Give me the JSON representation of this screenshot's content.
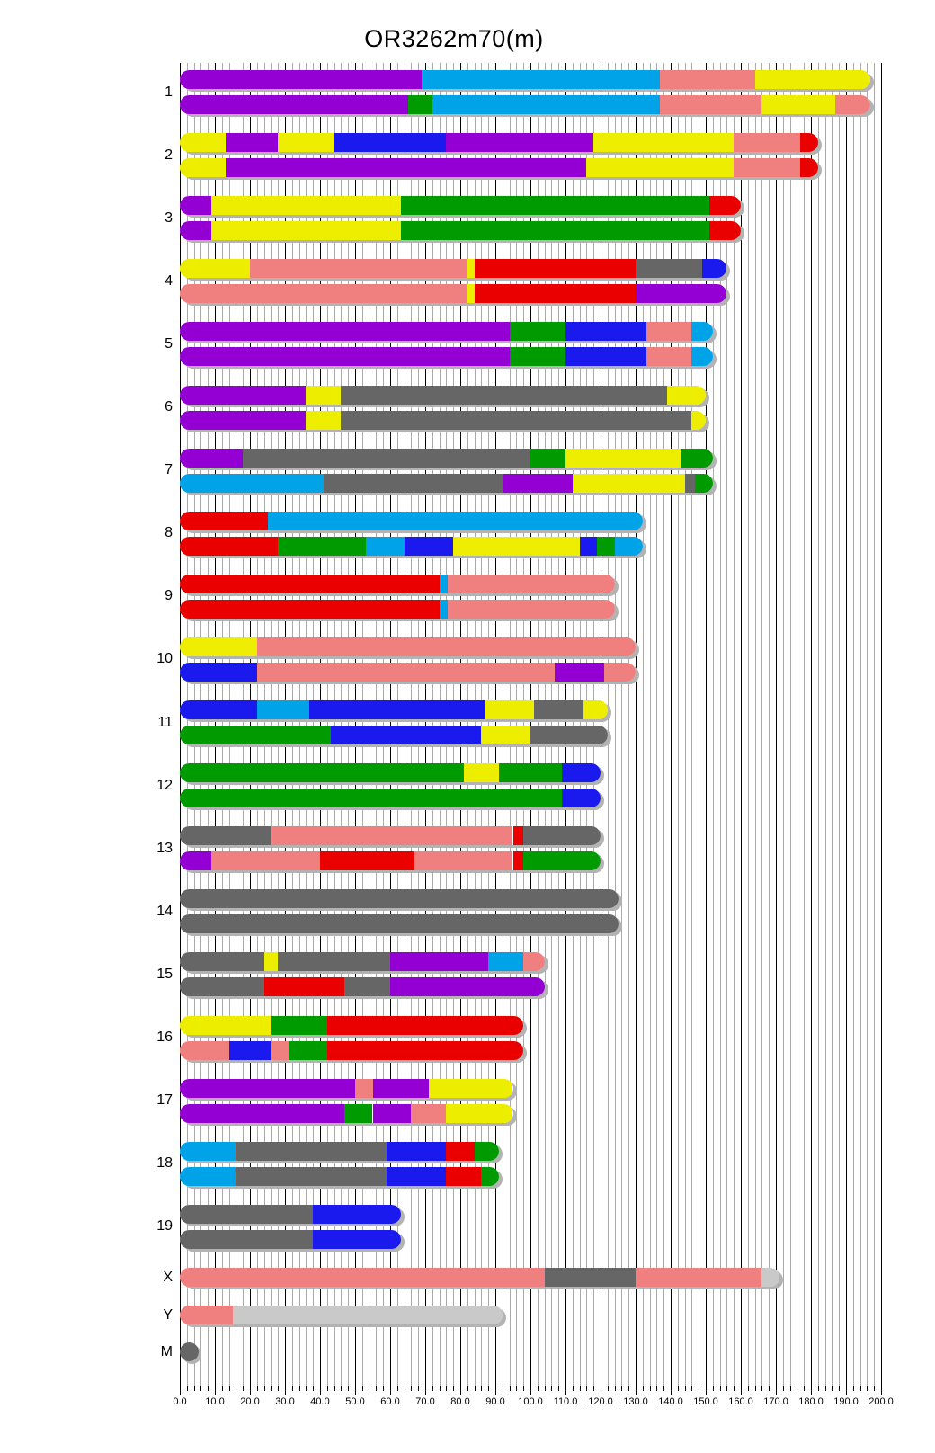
{
  "title": "OR3262m70(m)",
  "colors": {
    "purple": "#9400D3",
    "cyan": "#00A2E8",
    "blue": "#1A1AEE",
    "green": "#009B00",
    "red": "#EB0000",
    "yellow": "#EDED00",
    "pink": "#F08080",
    "gray": "#666666",
    "lightgray": "#C9C9C9",
    "shadow": "#B3B3B3",
    "grid_minor": "#AAAAAA",
    "grid_major": "#000000"
  },
  "axis": {
    "min": 0,
    "max": 200,
    "minor_step": 2,
    "major_step": 10,
    "tick_labels": [
      "0.0",
      "10.0",
      "20.0",
      "30.0",
      "40.0",
      "50.0",
      "60.0",
      "70.0",
      "80.0",
      "90.0",
      "100.0",
      "110.0",
      "120.0",
      "130.0",
      "140.0",
      "150.0",
      "160.0",
      "170.0",
      "180.0",
      "190.0",
      "200.0"
    ]
  },
  "chart_data": {
    "type": "ideogram",
    "title": "OR3262m70(m)",
    "x_unit": "Mb",
    "xlim": [
      0,
      200
    ],
    "grid": true,
    "legend_position": "none",
    "description": "Mouse karyotype haplotype painting; two haplotype bars per autosome, one bar for X and Y, dot for M. Segments given as [start_Mb, end_Mb, color_key].",
    "chromosomes": [
      {
        "label": "1",
        "length": 197,
        "bars": [
          [
            [
              0,
              69,
              "purple"
            ],
            [
              69,
              137,
              "cyan"
            ],
            [
              137,
              164,
              "pink"
            ],
            [
              164,
              197,
              "yellow"
            ]
          ],
          [
            [
              0,
              65,
              "purple"
            ],
            [
              65,
              72,
              "green"
            ],
            [
              72,
              137,
              "cyan"
            ],
            [
              137,
              166,
              "pink"
            ],
            [
              166,
              187,
              "yellow"
            ],
            [
              187,
              197,
              "pink"
            ]
          ]
        ]
      },
      {
        "label": "2",
        "length": 182,
        "bars": [
          [
            [
              0,
              13,
              "yellow"
            ],
            [
              13,
              28,
              "purple"
            ],
            [
              28,
              44,
              "yellow"
            ],
            [
              44,
              76,
              "blue"
            ],
            [
              76,
              118,
              "purple"
            ],
            [
              118,
              158,
              "yellow"
            ],
            [
              158,
              177,
              "pink"
            ],
            [
              177,
              182,
              "red"
            ]
          ],
          [
            [
              0,
              13,
              "yellow"
            ],
            [
              13,
              116,
              "purple"
            ],
            [
              116,
              158,
              "yellow"
            ],
            [
              158,
              177,
              "pink"
            ],
            [
              177,
              182,
              "red"
            ]
          ]
        ]
      },
      {
        "label": "3",
        "length": 160,
        "bars": [
          [
            [
              0,
              9,
              "purple"
            ],
            [
              9,
              63,
              "yellow"
            ],
            [
              63,
              151,
              "green"
            ],
            [
              151,
              160,
              "red"
            ]
          ],
          [
            [
              0,
              9,
              "purple"
            ],
            [
              9,
              63,
              "yellow"
            ],
            [
              63,
              151,
              "green"
            ],
            [
              151,
              160,
              "red"
            ]
          ]
        ]
      },
      {
        "label": "4",
        "length": 156,
        "bars": [
          [
            [
              0,
              20,
              "yellow"
            ],
            [
              20,
              82,
              "pink"
            ],
            [
              82,
              84,
              "yellow"
            ],
            [
              84,
              130,
              "red"
            ],
            [
              130,
              149,
              "gray"
            ],
            [
              149,
              156,
              "blue"
            ]
          ],
          [
            [
              0,
              82,
              "pink"
            ],
            [
              82,
              84,
              "yellow"
            ],
            [
              84,
              130,
              "red"
            ],
            [
              130,
              156,
              "purple"
            ]
          ]
        ]
      },
      {
        "label": "5",
        "length": 152,
        "bars": [
          [
            [
              0,
              94,
              "purple"
            ],
            [
              94,
              110,
              "green"
            ],
            [
              110,
              133,
              "blue"
            ],
            [
              133,
              146,
              "pink"
            ],
            [
              146,
              152,
              "cyan"
            ]
          ],
          [
            [
              0,
              94,
              "purple"
            ],
            [
              94,
              110,
              "green"
            ],
            [
              110,
              133,
              "blue"
            ],
            [
              133,
              146,
              "pink"
            ],
            [
              146,
              152,
              "cyan"
            ]
          ]
        ]
      },
      {
        "label": "6",
        "length": 150,
        "bars": [
          [
            [
              0,
              36,
              "purple"
            ],
            [
              36,
              46,
              "yellow"
            ],
            [
              46,
              139,
              "gray"
            ],
            [
              139,
              150,
              "yellow"
            ]
          ],
          [
            [
              0,
              36,
              "purple"
            ],
            [
              36,
              46,
              "yellow"
            ],
            [
              46,
              146,
              "gray"
            ],
            [
              146,
              150,
              "yellow"
            ]
          ]
        ]
      },
      {
        "label": "7",
        "length": 152,
        "bars": [
          [
            [
              0,
              18,
              "purple"
            ],
            [
              18,
              100,
              "gray"
            ],
            [
              100,
              110,
              "green"
            ],
            [
              110,
              143,
              "yellow"
            ],
            [
              143,
              152,
              "green"
            ]
          ],
          [
            [
              0,
              41,
              "cyan"
            ],
            [
              41,
              92,
              "gray"
            ],
            [
              92,
              112,
              "purple"
            ],
            [
              112,
              144,
              "yellow"
            ],
            [
              144,
              147,
              "gray"
            ],
            [
              147,
              152,
              "green"
            ]
          ]
        ]
      },
      {
        "label": "8",
        "length": 132,
        "bars": [
          [
            [
              0,
              25,
              "red"
            ],
            [
              25,
              132,
              "cyan"
            ]
          ],
          [
            [
              0,
              28,
              "red"
            ],
            [
              28,
              53,
              "green"
            ],
            [
              53,
              64,
              "cyan"
            ],
            [
              64,
              78,
              "blue"
            ],
            [
              78,
              114,
              "yellow"
            ],
            [
              114,
              119,
              "blue"
            ],
            [
              119,
              124,
              "green"
            ],
            [
              124,
              132,
              "cyan"
            ]
          ]
        ]
      },
      {
        "label": "9",
        "length": 124,
        "bars": [
          [
            [
              0,
              74,
              "red"
            ],
            [
              74,
              76.5,
              "cyan"
            ],
            [
              76.5,
              124,
              "pink"
            ]
          ],
          [
            [
              0,
              74,
              "red"
            ],
            [
              74,
              76.5,
              "cyan"
            ],
            [
              76.5,
              124,
              "pink"
            ]
          ]
        ]
      },
      {
        "label": "10",
        "length": 130,
        "bars": [
          [
            [
              0,
              22,
              "yellow"
            ],
            [
              22,
              130,
              "pink"
            ]
          ],
          [
            [
              0,
              22,
              "blue"
            ],
            [
              22,
              107,
              "pink"
            ],
            [
              107,
              121,
              "purple"
            ],
            [
              121,
              130,
              "pink"
            ]
          ]
        ]
      },
      {
        "label": "11",
        "length": 122,
        "bars": [
          [
            [
              0,
              22,
              "blue"
            ],
            [
              22,
              37,
              "cyan"
            ],
            [
              37,
              87,
              "blue"
            ],
            [
              87,
              101,
              "yellow"
            ],
            [
              101,
              115,
              "gray"
            ],
            [
              115,
              122,
              "yellow"
            ]
          ],
          [
            [
              0,
              43,
              "green"
            ],
            [
              43,
              86,
              "blue"
            ],
            [
              86,
              100,
              "yellow"
            ],
            [
              100,
              122,
              "gray"
            ]
          ]
        ]
      },
      {
        "label": "12",
        "length": 120,
        "bars": [
          [
            [
              0,
              81,
              "green"
            ],
            [
              81,
              91,
              "yellow"
            ],
            [
              91,
              109,
              "green"
            ],
            [
              109,
              120,
              "blue"
            ]
          ],
          [
            [
              0,
              109,
              "green"
            ],
            [
              109,
              120,
              "blue"
            ]
          ]
        ]
      },
      {
        "label": "13",
        "length": 120,
        "bars": [
          [
            [
              0,
              26,
              "gray"
            ],
            [
              26,
              95,
              "pink"
            ],
            [
              95,
              98,
              "red"
            ],
            [
              98,
              120,
              "gray"
            ]
          ],
          [
            [
              0,
              9,
              "purple"
            ],
            [
              9,
              40,
              "pink"
            ],
            [
              40,
              67,
              "red"
            ],
            [
              67,
              95,
              "pink"
            ],
            [
              95,
              98,
              "red"
            ],
            [
              98,
              120,
              "green"
            ]
          ]
        ]
      },
      {
        "label": "14",
        "length": 125,
        "bars": [
          [
            [
              0,
              125,
              "gray"
            ]
          ],
          [
            [
              0,
              125,
              "gray"
            ]
          ]
        ]
      },
      {
        "label": "15",
        "length": 104,
        "bars": [
          [
            [
              0,
              24,
              "gray"
            ],
            [
              24,
              28,
              "yellow"
            ],
            [
              28,
              60,
              "gray"
            ],
            [
              60,
              88,
              "purple"
            ],
            [
              88,
              98,
              "cyan"
            ],
            [
              98,
              104,
              "pink"
            ]
          ],
          [
            [
              0,
              24,
              "gray"
            ],
            [
              24,
              47,
              "red"
            ],
            [
              47,
              60,
              "gray"
            ],
            [
              60,
              104,
              "purple"
            ]
          ]
        ]
      },
      {
        "label": "16",
        "length": 98,
        "bars": [
          [
            [
              0,
              26,
              "yellow"
            ],
            [
              26,
              42,
              "green"
            ],
            [
              42,
              98,
              "red"
            ]
          ],
          [
            [
              0,
              14,
              "pink"
            ],
            [
              14,
              26,
              "blue"
            ],
            [
              26,
              31,
              "pink"
            ],
            [
              31,
              42,
              "green"
            ],
            [
              42,
              98,
              "red"
            ]
          ]
        ]
      },
      {
        "label": "17",
        "length": 95,
        "bars": [
          [
            [
              0,
              50,
              "purple"
            ],
            [
              50,
              55,
              "pink"
            ],
            [
              55,
              71,
              "purple"
            ],
            [
              71,
              95,
              "yellow"
            ]
          ],
          [
            [
              0,
              47,
              "purple"
            ],
            [
              47,
              55,
              "green"
            ],
            [
              55,
              66,
              "purple"
            ],
            [
              66,
              76,
              "pink"
            ],
            [
              76,
              95,
              "yellow"
            ]
          ]
        ]
      },
      {
        "label": "18",
        "length": 91,
        "bars": [
          [
            [
              0,
              16,
              "cyan"
            ],
            [
              16,
              59,
              "gray"
            ],
            [
              59,
              76,
              "blue"
            ],
            [
              76,
              84,
              "red"
            ],
            [
              84,
              91,
              "green"
            ]
          ],
          [
            [
              0,
              16,
              "cyan"
            ],
            [
              16,
              59,
              "gray"
            ],
            [
              59,
              76,
              "blue"
            ],
            [
              76,
              86,
              "red"
            ],
            [
              86,
              91,
              "green"
            ]
          ]
        ]
      },
      {
        "label": "19",
        "length": 63,
        "bars": [
          [
            [
              0,
              38,
              "gray"
            ],
            [
              38,
              63,
              "blue"
            ]
          ],
          [
            [
              0,
              38,
              "gray"
            ],
            [
              38,
              63,
              "blue"
            ]
          ]
        ]
      },
      {
        "label": "X",
        "length": 171,
        "bars": [
          [
            [
              0,
              104,
              "pink"
            ],
            [
              104,
              130,
              "gray"
            ],
            [
              130,
              166,
              "pink"
            ],
            [
              166,
              171,
              "lightgray"
            ]
          ]
        ]
      },
      {
        "label": "Y",
        "length": 92,
        "bars": [
          [
            [
              0,
              15,
              "pink"
            ],
            [
              15,
              92,
              "lightgray"
            ]
          ]
        ]
      },
      {
        "label": "M",
        "length": 5,
        "dot": true,
        "bars": [
          [
            [
              0,
              5,
              "gray"
            ]
          ]
        ]
      }
    ]
  }
}
